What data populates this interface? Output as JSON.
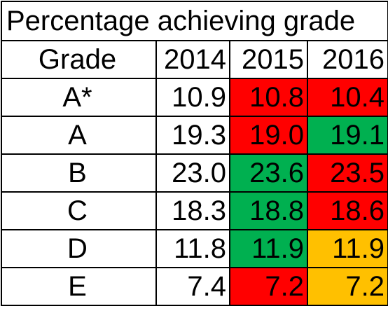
{
  "table": {
    "title": "Percentage achieving grade",
    "header": {
      "grade_label": "Grade",
      "years": [
        "2014",
        "2015",
        "2016"
      ]
    },
    "colors": {
      "red": "#ff0000",
      "green": "#00b050",
      "amber": "#ffc000",
      "none": "#ffffff"
    },
    "rows": [
      {
        "grade": "A*",
        "values": [
          "10.9",
          "10.8",
          "10.4"
        ],
        "highlight": [
          "none",
          "red",
          "red"
        ]
      },
      {
        "grade": "A",
        "values": [
          "19.3",
          "19.0",
          "19.1"
        ],
        "highlight": [
          "none",
          "red",
          "green"
        ]
      },
      {
        "grade": "B",
        "values": [
          "23.0",
          "23.6",
          "23.5"
        ],
        "highlight": [
          "none",
          "green",
          "red"
        ]
      },
      {
        "grade": "C",
        "values": [
          "18.3",
          "18.8",
          "18.6"
        ],
        "highlight": [
          "none",
          "green",
          "red"
        ]
      },
      {
        "grade": "D",
        "values": [
          "11.8",
          "11.9",
          "11.9"
        ],
        "highlight": [
          "none",
          "green",
          "amber"
        ]
      },
      {
        "grade": "E",
        "values": [
          "7.4",
          "7.2",
          "7.2"
        ],
        "highlight": [
          "none",
          "red",
          "amber"
        ]
      }
    ]
  }
}
